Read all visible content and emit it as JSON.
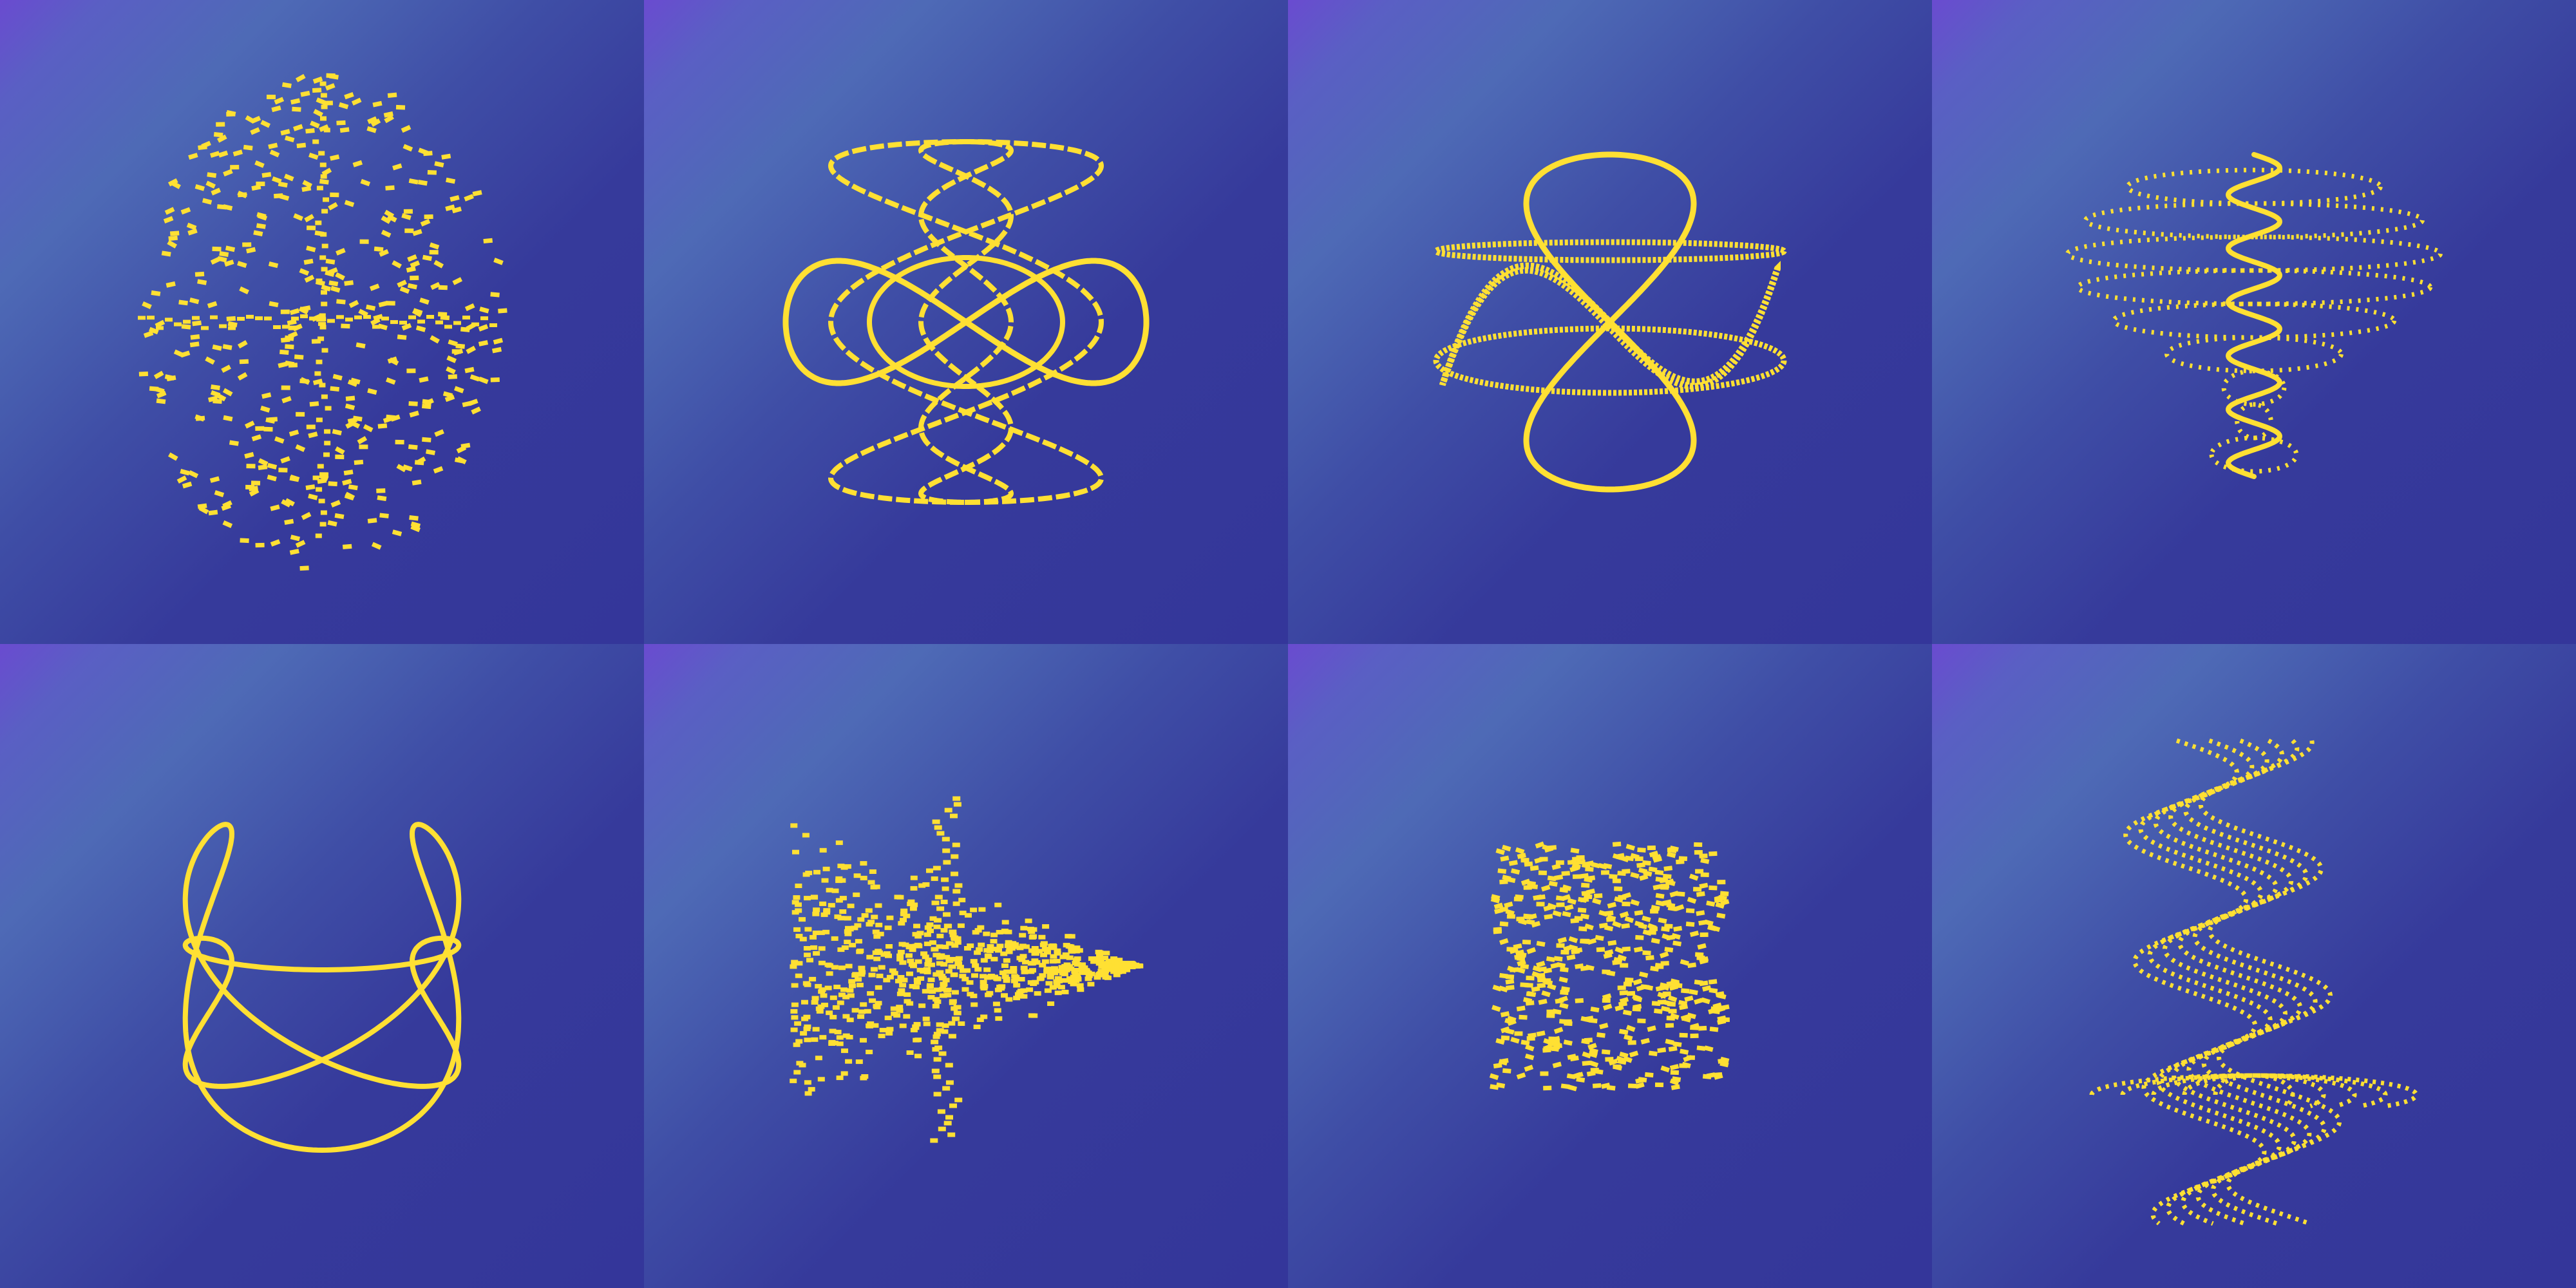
{
  "palette": {
    "background": "#34369a",
    "gradient_corner": "#6a4bd0",
    "gradient_mid": "#4e6ab6",
    "pattern": "#ffe033"
  },
  "tiles": [
    {
      "name": "tile-scattered-ellipsoid",
      "pattern": "scattered-ellipsoid"
    },
    {
      "name": "tile-lissajous-eye",
      "pattern": "lissajous-eye"
    },
    {
      "name": "tile-twisted-ribbon",
      "pattern": "twisted-ribbon"
    },
    {
      "name": "tile-wavy-dotted-stack",
      "pattern": "wavy-dotted-stack"
    },
    {
      "name": "tile-knotted-loop",
      "pattern": "knotted-loop"
    },
    {
      "name": "tile-dotted-arrow",
      "pattern": "dotted-arrow"
    },
    {
      "name": "tile-noisy-square",
      "pattern": "noisy-square"
    },
    {
      "name": "tile-wavy-columns",
      "pattern": "wavy-columns"
    }
  ]
}
